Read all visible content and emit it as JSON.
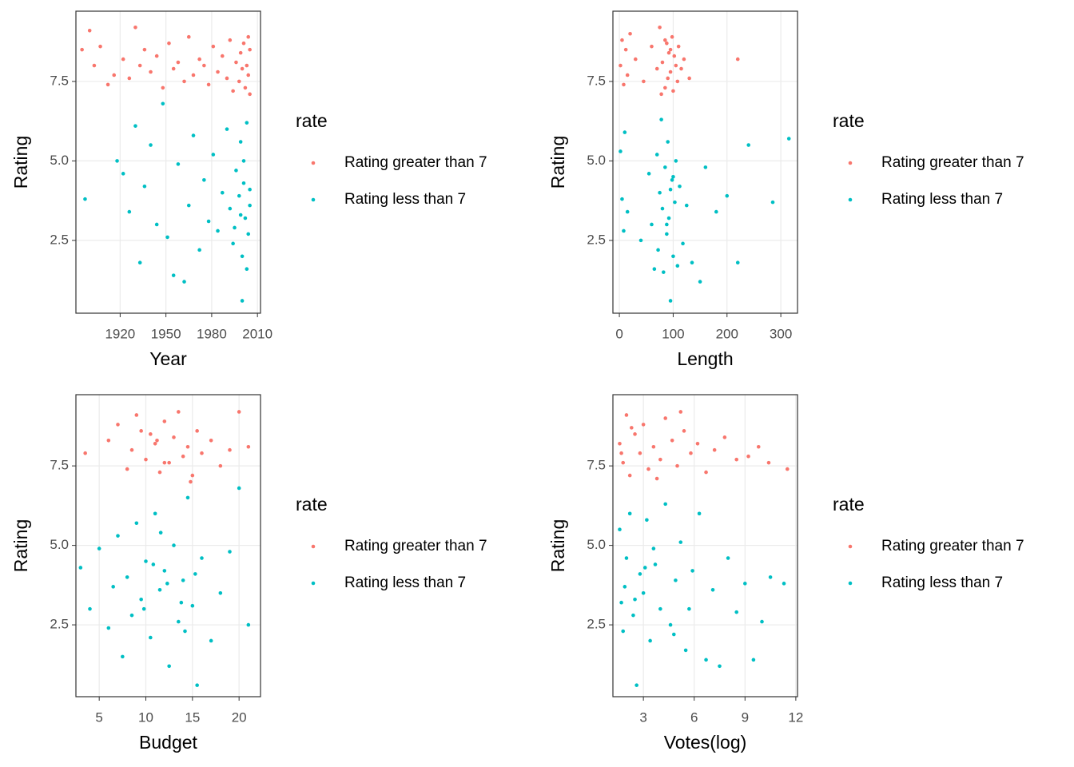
{
  "chart_data": [
    {
      "type": "scatter",
      "xlabel": "Year",
      "ylabel": "Rating",
      "legend_title": "rate",
      "grid": true,
      "xlim": [
        1891,
        2012
      ],
      "ylim": [
        0.21,
        9.71
      ],
      "xticks": [
        1920,
        1950,
        1980,
        2010
      ],
      "yticks": [
        2.5,
        {
          "value": 5,
          "label": "5.0"
        },
        7.5
      ],
      "series": [
        {
          "name": "Rating greater than 7",
          "color": "#F8766D",
          "x": [
            1895,
            1900,
            1903,
            1907,
            1912,
            1916,
            1922,
            1926,
            1930,
            1933,
            1936,
            1940,
            1944,
            1948,
            1952,
            1955,
            1958,
            1962,
            1965,
            1968,
            1972,
            1975,
            1978,
            1981,
            1984,
            1987,
            1990,
            1992,
            1994,
            1996,
            1998,
            1999,
            2000,
            2001,
            2002,
            2003,
            2004,
            2005,
            2005,
            2004
          ],
          "values": [
            8.5,
            9.1,
            8.0,
            8.6,
            7.4,
            7.7,
            8.2,
            7.6,
            9.2,
            8.0,
            8.5,
            7.8,
            8.3,
            7.3,
            8.7,
            7.9,
            8.1,
            7.5,
            8.9,
            7.7,
            8.2,
            8.0,
            7.4,
            8.6,
            7.8,
            8.3,
            7.6,
            8.8,
            7.2,
            8.1,
            7.5,
            8.4,
            7.9,
            8.7,
            7.3,
            8.0,
            7.7,
            8.5,
            7.1,
            8.9
          ]
        },
        {
          "name": "Rating less than 7",
          "color": "#00BFC4",
          "x": [
            1897,
            1918,
            1922,
            1926,
            1930,
            1933,
            1936,
            1940,
            1944,
            1948,
            1951,
            1955,
            1958,
            1962,
            1965,
            1968,
            1972,
            1975,
            1978,
            1981,
            1984,
            1987,
            1990,
            1992,
            1994,
            1996,
            2000,
            1998,
            1999,
            2000,
            2001,
            2002,
            2003,
            2004,
            2005,
            2005,
            2003,
            2001,
            1999,
            1995
          ],
          "values": [
            3.8,
            5.0,
            4.6,
            3.4,
            6.1,
            1.8,
            4.2,
            5.5,
            3.0,
            6.8,
            2.6,
            1.4,
            4.9,
            1.2,
            3.6,
            5.8,
            2.2,
            4.4,
            3.1,
            5.2,
            2.8,
            4.0,
            6.0,
            3.5,
            2.4,
            4.7,
            0.6,
            3.9,
            5.6,
            2.0,
            4.3,
            3.2,
            6.2,
            2.7,
            4.1,
            3.6,
            1.6,
            5.0,
            3.3,
            2.9
          ]
        }
      ]
    },
    {
      "type": "scatter",
      "xlabel": "Length",
      "ylabel": "Rating",
      "legend_title": "rate",
      "grid": true,
      "xlim": [
        -12,
        331
      ],
      "ylim": [
        0.21,
        9.71
      ],
      "xticks": [
        0,
        100,
        200,
        300
      ],
      "yticks": [
        2.5,
        {
          "value": 5,
          "label": "5.0"
        },
        7.5
      ],
      "series": [
        {
          "name": "Rating greater than 7",
          "color": "#F8766D",
          "x": [
            2,
            5,
            8,
            12,
            15,
            20,
            30,
            45,
            60,
            70,
            75,
            80,
            85,
            88,
            90,
            92,
            95,
            98,
            100,
            102,
            105,
            108,
            110,
            115,
            120,
            130,
            220,
            95,
            85,
            78
          ],
          "values": [
            8.0,
            8.8,
            7.4,
            8.5,
            7.7,
            9.0,
            8.2,
            7.5,
            8.6,
            7.9,
            9.2,
            8.1,
            7.3,
            8.7,
            7.6,
            8.4,
            7.8,
            8.9,
            7.2,
            8.3,
            8.0,
            7.5,
            8.6,
            7.9,
            8.2,
            7.6,
            8.2,
            8.5,
            8.8,
            7.1
          ]
        },
        {
          "name": "Rating less than 7",
          "color": "#00BFC4",
          "x": [
            2,
            5,
            8,
            10,
            15,
            40,
            55,
            60,
            65,
            70,
            72,
            75,
            78,
            80,
            82,
            85,
            88,
            90,
            92,
            95,
            98,
            100,
            103,
            105,
            108,
            112,
            118,
            125,
            135,
            150,
            160,
            180,
            200,
            220,
            240,
            285,
            315,
            95,
            88,
            100
          ],
          "values": [
            5.3,
            3.8,
            2.8,
            5.9,
            3.4,
            2.5,
            4.6,
            3.0,
            1.6,
            5.2,
            2.2,
            4.0,
            6.3,
            3.5,
            1.5,
            4.8,
            2.7,
            5.6,
            3.2,
            0.6,
            4.4,
            2.0,
            3.7,
            5.0,
            1.7,
            4.2,
            2.4,
            3.6,
            1.8,
            1.2,
            4.8,
            3.4,
            3.9,
            1.8,
            5.5,
            3.7,
            5.7,
            4.1,
            3.0,
            4.5
          ]
        }
      ]
    },
    {
      "type": "scatter",
      "xlabel": "Budget",
      "ylabel": "Rating",
      "legend_title": "rate",
      "grid": true,
      "xlim": [
        2.5,
        22.3
      ],
      "ylim": [
        0.24,
        9.74
      ],
      "xticks": [
        5,
        10,
        15,
        20
      ],
      "yticks": [
        2.5,
        {
          "value": 5,
          "label": "5.0"
        },
        7.5
      ],
      "series": [
        {
          "name": "Rating greater than 7",
          "color": "#F8766D",
          "x": [
            3.5,
            6,
            7,
            8,
            8.5,
            9,
            10,
            10.5,
            11,
            11.5,
            12,
            12.5,
            13,
            13.5,
            14,
            14.5,
            15,
            15.5,
            16,
            17,
            18,
            19,
            20,
            21,
            12,
            9.5,
            14.8,
            11.2
          ],
          "values": [
            7.9,
            8.3,
            8.8,
            7.4,
            8.0,
            9.1,
            7.7,
            8.5,
            8.2,
            7.3,
            8.9,
            7.6,
            8.4,
            9.2,
            7.8,
            8.1,
            7.2,
            8.6,
            7.9,
            8.3,
            7.5,
            8.0,
            9.2,
            8.1,
            7.6,
            8.6,
            7.0,
            8.3
          ]
        },
        {
          "name": "Rating less than 7",
          "color": "#00BFC4",
          "x": [
            3,
            4,
            5,
            6,
            6.5,
            7,
            7.5,
            8,
            8.5,
            9,
            9.5,
            10,
            10.5,
            11,
            11.5,
            12,
            12.5,
            13,
            13.5,
            14,
            14.5,
            15,
            15.5,
            16,
            17,
            18,
            19,
            20,
            21,
            12.3,
            10.8,
            13.8,
            11.6,
            14.2,
            9.8,
            15.3
          ],
          "values": [
            4.3,
            3.0,
            4.9,
            2.4,
            3.7,
            5.3,
            1.5,
            4.0,
            2.8,
            5.7,
            3.3,
            4.5,
            2.1,
            6.0,
            3.6,
            4.2,
            1.2,
            5.0,
            2.6,
            3.9,
            6.5,
            3.1,
            0.6,
            4.6,
            2.0,
            3.5,
            4.8,
            6.8,
            2.5,
            3.8,
            4.4,
            3.2,
            5.4,
            2.3,
            3.0,
            4.1
          ]
        }
      ]
    },
    {
      "type": "scatter",
      "xlabel": "Votes(log)",
      "ylabel": "Rating",
      "legend_title": "rate",
      "grid": true,
      "xlim": [
        1.2,
        12.1
      ],
      "ylim": [
        0.24,
        9.74
      ],
      "xticks": [
        3,
        6,
        9,
        12
      ],
      "yticks": [
        2.5,
        {
          "value": 5,
          "label": "5.0"
        },
        7.5
      ],
      "series": [
        {
          "name": "Rating greater than 7",
          "color": "#F8766D",
          "x": [
            1.6,
            1.8,
            2.0,
            2.2,
            2.5,
            2.8,
            3.0,
            3.3,
            3.6,
            4.0,
            4.3,
            4.7,
            5.0,
            5.4,
            5.8,
            6.2,
            6.7,
            7.2,
            7.8,
            8.5,
            9.2,
            9.8,
            10.4,
            11.5,
            2.3,
            3.8,
            5.2,
            1.7
          ],
          "values": [
            8.2,
            7.6,
            9.1,
            7.2,
            8.5,
            7.9,
            8.8,
            7.4,
            8.1,
            7.7,
            9.0,
            8.3,
            7.5,
            8.6,
            7.9,
            8.2,
            7.3,
            8.0,
            8.4,
            7.7,
            7.8,
            8.1,
            7.6,
            7.4,
            8.7,
            7.1,
            9.2,
            7.9
          ]
        },
        {
          "name": "Rating less than 7",
          "color": "#00BFC4",
          "x": [
            1.6,
            1.7,
            1.8,
            2.0,
            2.2,
            2.4,
            2.6,
            2.8,
            3.0,
            3.2,
            3.4,
            3.7,
            4.0,
            4.3,
            4.6,
            4.9,
            5.2,
            5.5,
            5.9,
            6.3,
            6.7,
            7.1,
            7.5,
            8.0,
            8.5,
            9.0,
            9.5,
            10.0,
            10.5,
            11.3,
            2.5,
            3.6,
            4.8,
            1.9,
            3.1,
            5.7
          ],
          "values": [
            5.5,
            3.2,
            2.3,
            4.6,
            6.0,
            2.8,
            0.6,
            4.1,
            3.5,
            5.8,
            2.0,
            4.4,
            3.0,
            6.3,
            2.5,
            3.9,
            5.1,
            1.7,
            4.2,
            6.0,
            1.4,
            3.6,
            1.2,
            4.6,
            2.9,
            3.8,
            1.4,
            2.6,
            4.0,
            3.8,
            3.3,
            4.9,
            2.2,
            3.7,
            4.3,
            3.0
          ]
        }
      ]
    }
  ]
}
